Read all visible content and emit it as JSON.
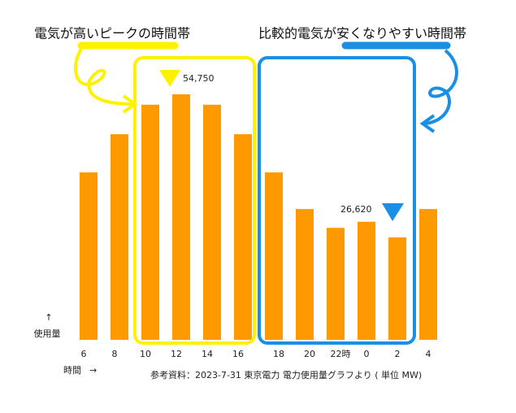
{
  "chart_data": {
    "type": "bar",
    "title_peak": "電気が高いピークの時間帯",
    "title_offpeak": "比較的電気が安くなりやすい時間帯",
    "categories": [
      "6",
      "8",
      "10",
      "12",
      "14",
      "16",
      "18",
      "20",
      "22時",
      "0",
      "2",
      "4"
    ],
    "values": [
      39400,
      46900,
      52700,
      54750,
      52700,
      46900,
      39400,
      32200,
      28500,
      29700,
      26620,
      32200
    ],
    "value_labels": [
      null,
      null,
      null,
      "54,750",
      null,
      null,
      null,
      null,
      null,
      null,
      "26,620",
      null
    ],
    "color": "#ff9900",
    "ylim": [
      6500,
      57300
    ],
    "ylabel_arrow": "↑",
    "ylabel": "使用量",
    "xlabel": "時間",
    "xlabel_arrow": "→",
    "source": "参考資料：2023-7-31 東京電力 電力使用量グラフより ( 単位 MW)"
  }
}
